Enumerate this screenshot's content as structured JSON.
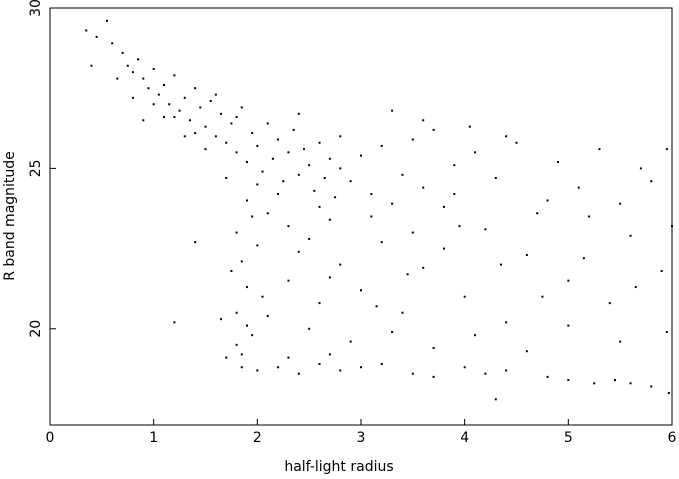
{
  "chart_data": {
    "type": "scatter",
    "xlabel": "half-light radius",
    "ylabel": "R band magnitude",
    "xlim": [
      0,
      6
    ],
    "ylim": [
      17,
      30
    ],
    "xticks": [
      0,
      1,
      2,
      3,
      4,
      5,
      6
    ],
    "yticks": [
      20,
      25,
      30
    ],
    "color": "#000000",
    "x": [
      0.35,
      0.45,
      0.55,
      0.6,
      0.7,
      0.75,
      0.8,
      0.85,
      0.9,
      0.95,
      1.0,
      1.05,
      1.1,
      1.15,
      1.2,
      1.25,
      1.3,
      1.35,
      1.4,
      1.45,
      1.5,
      1.55,
      1.6,
      1.65,
      1.7,
      1.75,
      1.8,
      1.85,
      1.9,
      1.95,
      2.0,
      2.05,
      2.1,
      2.15,
      2.2,
      2.25,
      2.3,
      2.35,
      2.4,
      2.45,
      2.5,
      2.55,
      2.6,
      2.65,
      2.7,
      2.75,
      2.8,
      2.9,
      3.0,
      3.1,
      3.2,
      3.3,
      3.4,
      3.5,
      3.6,
      3.7,
      3.8,
      3.9,
      1.0,
      1.2,
      1.4,
      1.6,
      1.8,
      2.0,
      2.2,
      2.4,
      2.6,
      2.8,
      1.9,
      2.1,
      2.3,
      2.5,
      2.7,
      1.7,
      1.5,
      1.3,
      1.1,
      0.9,
      0.8,
      0.65,
      1.8,
      1.85,
      1.9,
      1.8,
      1.95,
      1.85,
      1.75,
      1.9,
      2.0,
      1.8,
      1.65,
      1.7,
      2.05,
      2.1,
      1.95,
      2.3,
      2.6,
      2.8,
      3.0,
      3.2,
      3.4,
      3.6,
      3.8,
      4.0,
      4.2,
      4.4,
      4.6,
      4.8,
      5.0,
      5.2,
      5.4,
      5.6,
      5.8,
      5.9,
      3.1,
      3.5,
      3.9,
      4.1,
      4.3,
      4.5,
      4.7,
      4.9,
      5.1,
      5.3,
      5.5,
      5.7,
      5.95,
      4.05,
      4.4,
      3.3,
      3.6,
      2.5,
      2.9,
      3.3,
      3.7,
      4.1,
      4.6,
      5.0,
      5.5,
      5.95,
      2.4,
      2.7,
      3.15,
      3.45,
      3.95,
      4.35,
      4.75,
      5.15,
      5.65,
      6.0,
      1.85,
      2.0,
      2.2,
      2.4,
      2.6,
      2.8,
      3.0,
      3.2,
      3.5,
      3.7,
      4.0,
      4.2,
      4.4,
      4.8,
      5.0,
      5.25,
      5.45,
      5.6,
      5.8,
      5.97,
      4.3,
      2.3,
      2.7,
      0.4,
      1.2,
      1.4
    ],
    "values": [
      29.3,
      29.1,
      29.6,
      28.9,
      28.6,
      28.2,
      28.0,
      28.4,
      27.8,
      27.5,
      28.1,
      27.3,
      27.6,
      27.0,
      27.9,
      26.8,
      27.2,
      26.5,
      27.5,
      26.9,
      26.3,
      27.1,
      26.0,
      26.7,
      25.8,
      26.4,
      25.5,
      26.9,
      25.2,
      26.1,
      25.7,
      24.9,
      26.4,
      25.3,
      25.9,
      24.6,
      25.5,
      26.2,
      24.8,
      25.6,
      25.1,
      24.3,
      25.8,
      24.7,
      25.3,
      24.1,
      25.0,
      24.6,
      25.4,
      24.2,
      25.7,
      23.9,
      24.8,
      25.9,
      24.4,
      26.2,
      23.8,
      25.1,
      27.0,
      26.6,
      26.1,
      27.3,
      26.6,
      24.5,
      24.2,
      26.7,
      23.8,
      26.0,
      24.0,
      23.6,
      23.2,
      22.8,
      23.4,
      24.7,
      25.6,
      26.0,
      26.6,
      26.5,
      27.2,
      27.8,
      23.0,
      22.1,
      21.3,
      20.5,
      19.8,
      19.2,
      21.8,
      20.1,
      22.6,
      19.5,
      20.3,
      19.1,
      21.0,
      20.4,
      23.5,
      21.5,
      20.8,
      22.0,
      21.2,
      22.7,
      20.5,
      21.9,
      22.5,
      21.0,
      23.1,
      20.2,
      22.3,
      24.0,
      21.5,
      23.5,
      20.8,
      22.9,
      24.6,
      21.8,
      23.5,
      23.0,
      24.2,
      25.5,
      24.7,
      25.8,
      23.6,
      25.2,
      24.4,
      25.6,
      23.9,
      25.0,
      25.6,
      26.3,
      26.0,
      26.8,
      26.5,
      20.0,
      19.6,
      19.9,
      19.4,
      19.8,
      19.3,
      20.1,
      19.6,
      19.9,
      22.4,
      21.6,
      20.7,
      21.7,
      23.2,
      22.0,
      21.0,
      22.2,
      21.3,
      23.2,
      18.8,
      18.7,
      18.8,
      18.6,
      18.9,
      18.7,
      18.8,
      18.9,
      18.6,
      18.5,
      18.8,
      18.6,
      18.7,
      18.5,
      18.4,
      18.3,
      18.4,
      18.3,
      18.2,
      18.0,
      17.8,
      19.1,
      19.2,
      28.2,
      20.2,
      22.7
    ]
  }
}
